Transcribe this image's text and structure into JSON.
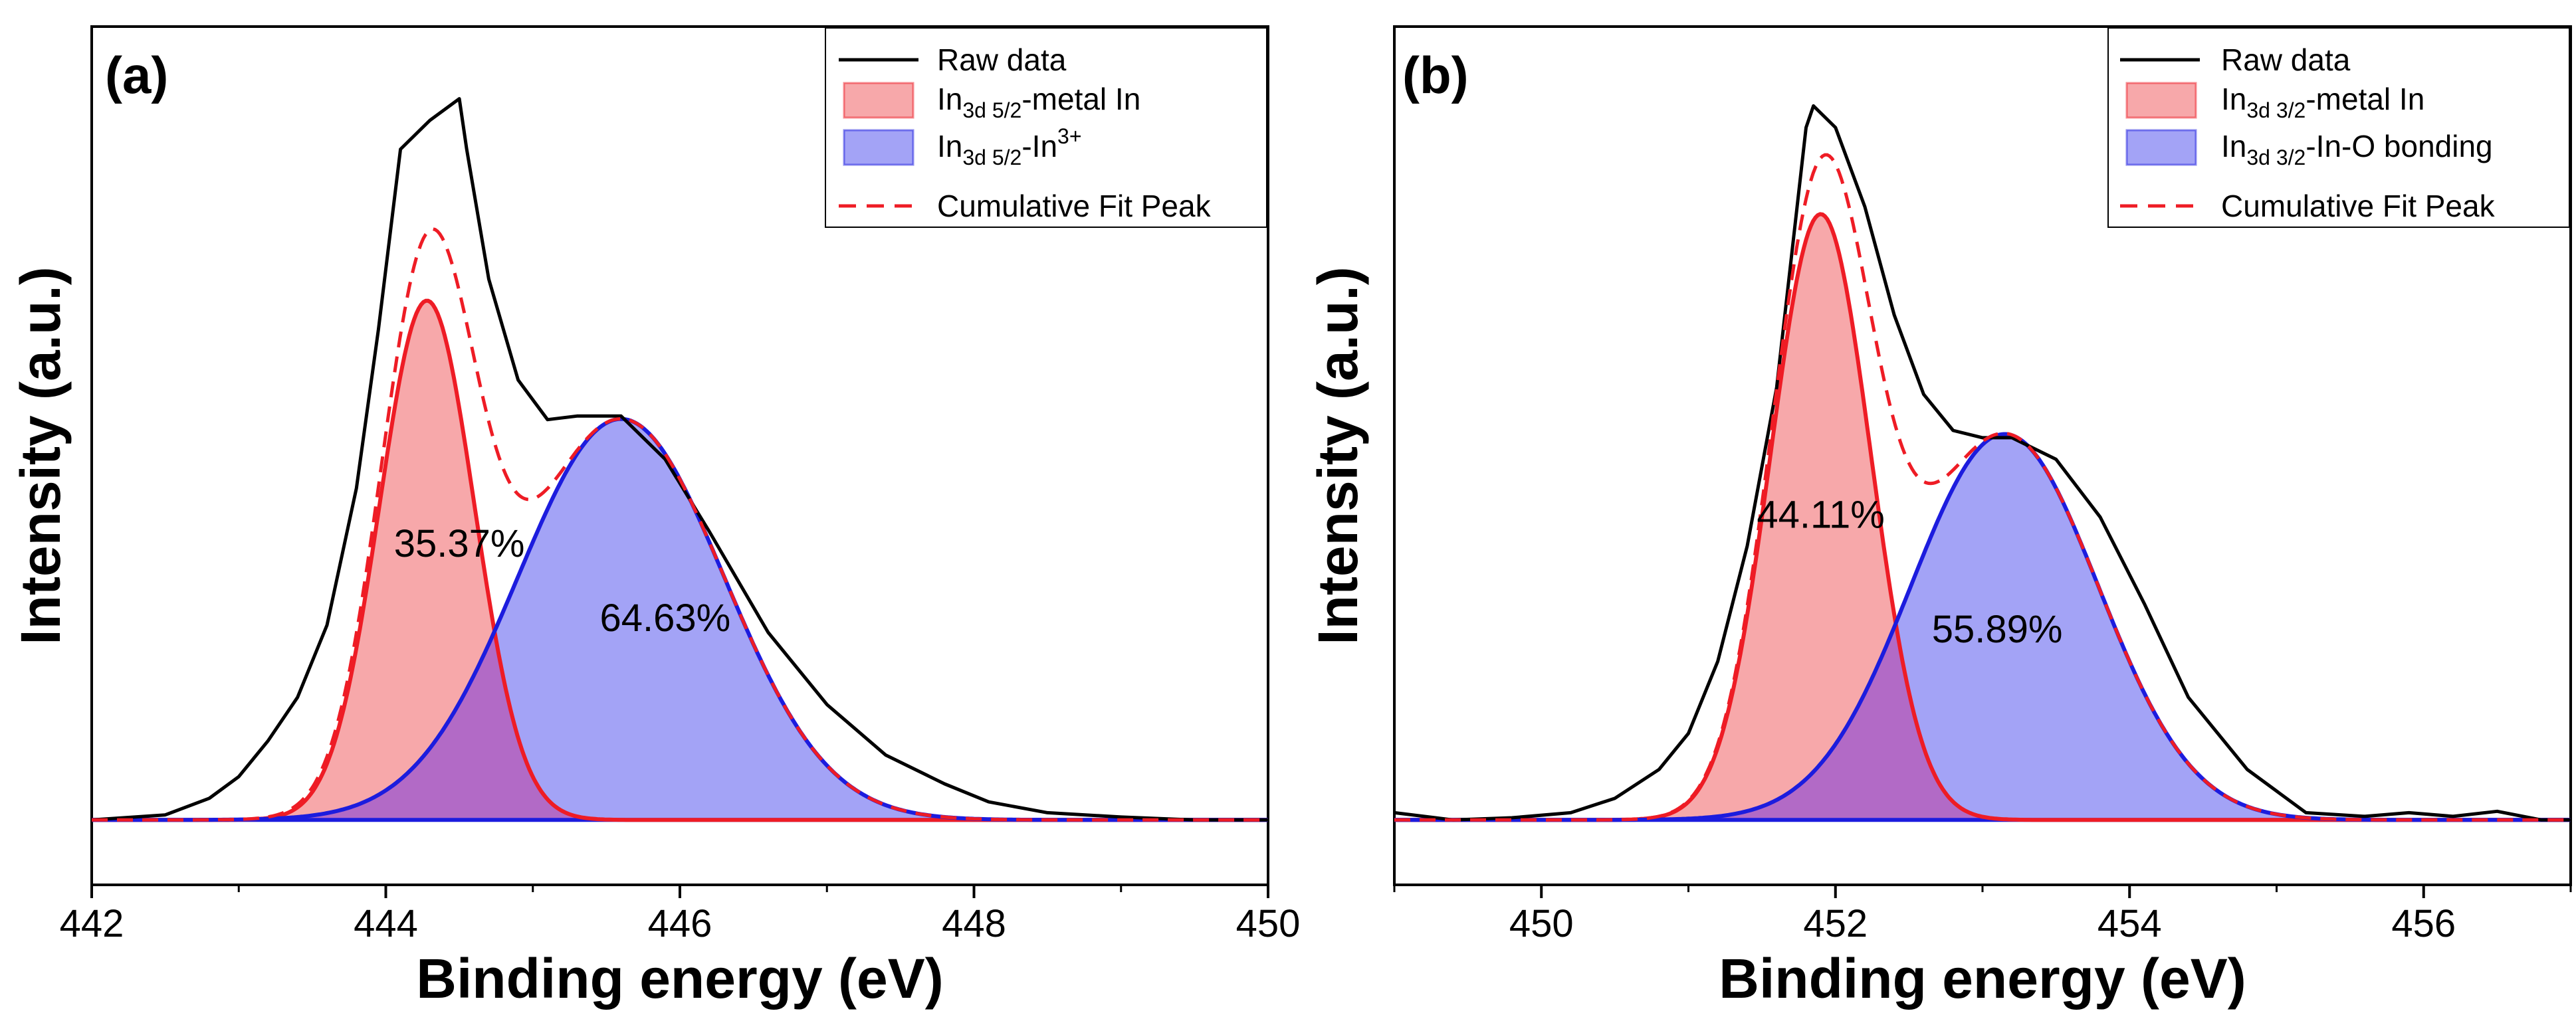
{
  "figure": {
    "panels": [
      {
        "label": "(a)",
        "xlabel": "Binding energy (eV)",
        "ylabel": "Intensity (a.u.)"
      },
      {
        "label": "(b)",
        "xlabel": "Binding energy (eV)",
        "ylabel": "Intensity (a.u.)"
      }
    ]
  },
  "colors": {
    "raw": "#000000",
    "metal_fill": "#f7a8aa",
    "metal_line": "#ee1c25",
    "oxide_fill": "#a3a3f6",
    "oxide_line": "#1c1cde",
    "overlap_fill": "#b26ac6",
    "fit": "#ee1c25"
  },
  "chart_data": [
    {
      "type": "line",
      "title": "(a)",
      "xlabel": "Binding energy (eV)",
      "ylabel": "Intensity (a.u.)",
      "xlim": [
        442,
        450
      ],
      "ylim": [
        -0.09,
        1.1
      ],
      "xticks": [
        "442",
        "444",
        "446",
        "448",
        "450"
      ],
      "yticks_visible": false,
      "legend": {
        "position": "top-right",
        "entries": [
          {
            "kind": "line",
            "text": "Raw data",
            "color": "raw"
          },
          {
            "kind": "fill",
            "main": "In",
            "sub": "3d 5/2",
            "sup": "",
            "tail": "-metal In",
            "color": "metal"
          },
          {
            "kind": "fill",
            "main": "In",
            "sub": "3d 5/2",
            "sup": "3+",
            "tail": "-In",
            "color": "oxide"
          },
          {
            "kind": "dash",
            "text": "Cumulative Fit Peak",
            "color": "fit"
          }
        ]
      },
      "annotations": [
        {
          "text": "35.37%",
          "x": 444.5,
          "y": 0.365
        },
        {
          "text": "64.63%",
          "x": 445.9,
          "y": 0.262
        }
      ],
      "series": [
        {
          "name": "In3d 5/2-metal In",
          "kind": "gaussian_peak",
          "center": 444.28,
          "fwhm": 0.76,
          "height": 0.72
        },
        {
          "name": "In3d 5/2-In3+",
          "kind": "gaussian_peak",
          "center": 445.6,
          "fwhm": 1.65,
          "height": 0.556
        },
        {
          "name": "Raw data",
          "kind": "line",
          "x": [
            442.0,
            442.5,
            442.8,
            443.0,
            443.2,
            443.4,
            443.6,
            443.8,
            443.95,
            444.1,
            444.2,
            444.3,
            444.5,
            444.55,
            444.7,
            444.9,
            445.1,
            445.3,
            445.6,
            445.9,
            446.2,
            446.6,
            447.0,
            447.4,
            447.8,
            448.1,
            448.5,
            449.0,
            449.5,
            450.0
          ],
          "y": [
            0.0,
            0.007,
            0.03,
            0.06,
            0.11,
            0.17,
            0.27,
            0.46,
            0.68,
            0.93,
            0.95,
            0.97,
            1.0,
            0.93,
            0.75,
            0.61,
            0.555,
            0.56,
            0.56,
            0.5,
            0.4,
            0.26,
            0.16,
            0.09,
            0.05,
            0.025,
            0.01,
            0.004,
            0.0,
            0.0
          ]
        },
        {
          "name": "Cumulative Fit Peak",
          "kind": "sum_of_peaks"
        }
      ]
    },
    {
      "type": "line",
      "title": "(b)",
      "xlabel": "Binding energy (eV)",
      "ylabel": "Intensity (a.u.)",
      "xlim": [
        449,
        457
      ],
      "ylim": [
        -0.09,
        1.1
      ],
      "xticks": [
        "450",
        "452",
        "454",
        "456"
      ],
      "yticks_visible": false,
      "legend": {
        "position": "top-right",
        "entries": [
          {
            "kind": "line",
            "text": "Raw data",
            "color": "raw"
          },
          {
            "kind": "fill",
            "main": "In",
            "sub": "3d 3/2",
            "sup": "",
            "tail": "-metal In",
            "color": "metal"
          },
          {
            "kind": "fill",
            "main": "In",
            "sub": "3d 3/2",
            "sup": "",
            "tail": "-In-O bonding",
            "color": "oxide"
          },
          {
            "kind": "dash",
            "text": "Cumulative Fit Peak",
            "color": "fit"
          }
        ]
      },
      "annotations": [
        {
          "text": "44.11%",
          "x": 451.9,
          "y": 0.405
        },
        {
          "text": "55.89%",
          "x": 453.1,
          "y": 0.246
        }
      ],
      "series": [
        {
          "name": "In3d 3/2-metal In",
          "kind": "gaussian_peak",
          "center": 451.9,
          "fwhm": 0.8,
          "height": 0.84
        },
        {
          "name": "In3d 3/2-In-O bonding",
          "kind": "gaussian_peak",
          "center": 453.15,
          "fwhm": 1.5,
          "height": 0.535
        },
        {
          "name": "Raw data",
          "kind": "line",
          "x": [
            449.0,
            449.4,
            449.8,
            450.2,
            450.5,
            450.8,
            451.0,
            451.2,
            451.4,
            451.6,
            451.8,
            451.85,
            452.0,
            452.2,
            452.4,
            452.6,
            452.8,
            453.0,
            453.2,
            453.5,
            453.8,
            454.1,
            454.4,
            454.8,
            455.2,
            455.6,
            455.9,
            456.2,
            456.5,
            456.8,
            457.0
          ],
          "y": [
            0.01,
            0.0,
            0.003,
            0.01,
            0.03,
            0.07,
            0.12,
            0.22,
            0.38,
            0.6,
            0.96,
            0.99,
            0.96,
            0.85,
            0.7,
            0.59,
            0.54,
            0.53,
            0.53,
            0.5,
            0.42,
            0.3,
            0.17,
            0.07,
            0.01,
            0.005,
            0.01,
            0.005,
            0.012,
            0.0,
            0.0
          ]
        },
        {
          "name": "Cumulative Fit Peak",
          "kind": "sum_of_peaks"
        }
      ]
    }
  ]
}
